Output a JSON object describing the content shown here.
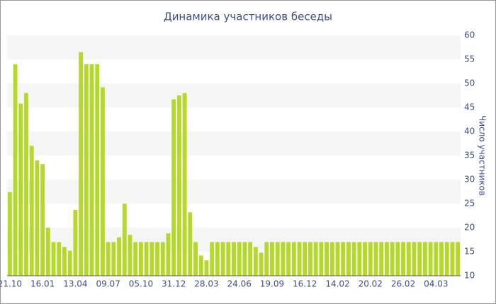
{
  "chart_data": {
    "type": "bar",
    "title": "Динамика участников беседы",
    "y_axis_label": "Число участников",
    "categories": [
      "21.10",
      null,
      null,
      null,
      null,
      null,
      "16.01",
      null,
      null,
      null,
      null,
      null,
      "13.04",
      null,
      null,
      null,
      null,
      null,
      "09.07",
      null,
      null,
      null,
      null,
      null,
      "05.10",
      null,
      null,
      null,
      null,
      null,
      "31.12",
      null,
      null,
      null,
      null,
      null,
      "28.03",
      null,
      null,
      null,
      null,
      null,
      "24.06",
      null,
      null,
      null,
      null,
      null,
      "19.09",
      null,
      null,
      null,
      null,
      null,
      "16.12",
      null,
      null,
      null,
      null,
      null,
      "14.02",
      null,
      null,
      null,
      null,
      null,
      "20.02",
      null,
      null,
      null,
      null,
      null,
      "26.02",
      null,
      null,
      null,
      null,
      null,
      "04.03",
      null,
      null,
      null,
      null
    ],
    "values": [
      27.4,
      54,
      45.8,
      48,
      37,
      34,
      33.2,
      20,
      17,
      17,
      16,
      15.2,
      23.7,
      56.5,
      54,
      54,
      54,
      49.2,
      17,
      17,
      18,
      25,
      18.5,
      17,
      17,
      17,
      17,
      17,
      17,
      18.8,
      46.7,
      47.5,
      48,
      23.2,
      17,
      14.2,
      13.2,
      17,
      17,
      17,
      17,
      17,
      17,
      17,
      17,
      16,
      14.8,
      17,
      17,
      17,
      17,
      17,
      17,
      17,
      17,
      17,
      17,
      17,
      17,
      17,
      17,
      17,
      17,
      17,
      17,
      17,
      17,
      17,
      17,
      17,
      17,
      17,
      17,
      17,
      17,
      17,
      17,
      17,
      17,
      17,
      17,
      17,
      17
    ],
    "color": "#b5d92a",
    "ylim": [
      10,
      60
    ],
    "yticks": [
      10,
      15,
      20,
      25,
      30,
      35,
      40,
      45,
      50,
      55,
      60
    ],
    "grid": true,
    "y_axis_side": "right"
  }
}
